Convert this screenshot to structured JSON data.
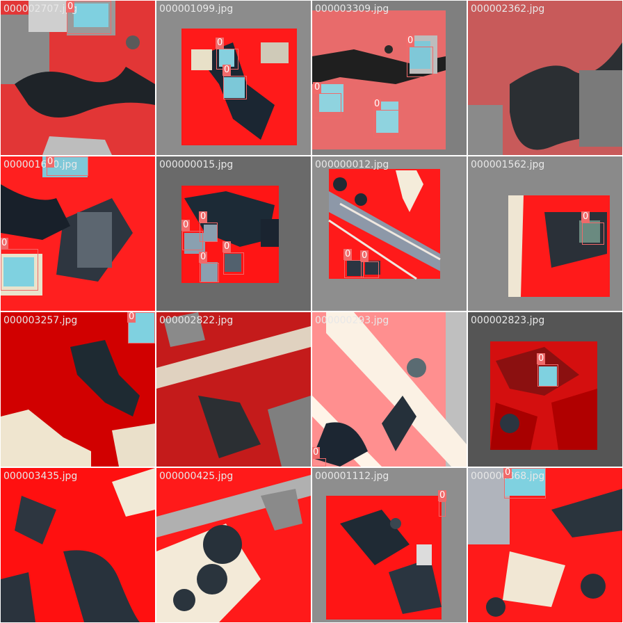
{
  "tiles": [
    {
      "filename": "000002707.jpg",
      "detections": [
        {
          "label": "0"
        }
      ]
    },
    {
      "filename": "000001099.jpg",
      "detections": [
        {
          "label": "0"
        },
        {
          "label": "0"
        }
      ]
    },
    {
      "filename": "000003309.jpg",
      "detections": [
        {
          "label": "0"
        },
        {
          "label": "0"
        },
        {
          "label": "0"
        }
      ]
    },
    {
      "filename": "000002362.jpg",
      "detections": []
    },
    {
      "filename": "000001670.jpg",
      "detections": [
        {
          "label": "0"
        },
        {
          "label": "0"
        }
      ]
    },
    {
      "filename": "000000015.jpg",
      "detections": [
        {
          "label": "0"
        },
        {
          "label": "0"
        },
        {
          "label": "0"
        },
        {
          "label": "0"
        }
      ]
    },
    {
      "filename": "000000012.jpg",
      "detections": [
        {
          "label": "0"
        },
        {
          "label": "0"
        }
      ]
    },
    {
      "filename": "000001562.jpg",
      "detections": [
        {
          "label": "0"
        }
      ]
    },
    {
      "filename": "000003257.jpg",
      "detections": [
        {
          "label": "0"
        }
      ]
    },
    {
      "filename": "000002822.jpg",
      "detections": []
    },
    {
      "filename": "000000293.jpg",
      "detections": [
        {
          "label": "0"
        }
      ]
    },
    {
      "filename": "000002823.jpg",
      "detections": [
        {
          "label": "0"
        }
      ]
    },
    {
      "filename": "000003435.jpg",
      "detections": []
    },
    {
      "filename": "000000425.jpg",
      "detections": []
    },
    {
      "filename": "000001112.jpg",
      "detections": [
        {
          "label": "0"
        }
      ]
    },
    {
      "filename": "000000868.jpg",
      "detections": [
        {
          "label": "0"
        }
      ]
    }
  ]
}
